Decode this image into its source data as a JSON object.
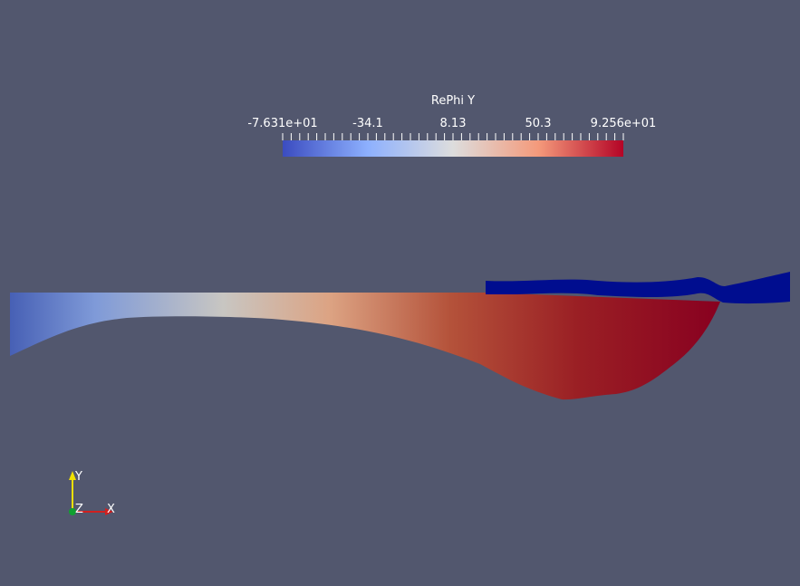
{
  "colorbar": {
    "title": "RePhi Y",
    "labels": [
      "-7.631e+01",
      "-34.1",
      "8.13",
      "50.3",
      "9.256e+01"
    ]
  },
  "axes": {
    "y": "Y",
    "z": "Z",
    "x": "X"
  }
}
